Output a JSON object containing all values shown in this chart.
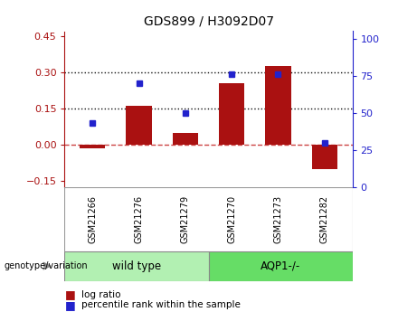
{
  "title": "GDS899 / H3092D07",
  "samples": [
    "GSM21266",
    "GSM21276",
    "GSM21279",
    "GSM21270",
    "GSM21273",
    "GSM21282"
  ],
  "log_ratio": [
    -0.015,
    0.16,
    0.05,
    0.255,
    0.325,
    -0.1
  ],
  "percentile_rank": [
    43,
    70,
    50,
    76,
    76,
    30
  ],
  "groups": [
    {
      "label": "wild type",
      "color": "#90EE90"
    },
    {
      "label": "AQP1-/-",
      "color": "#5CD65C"
    }
  ],
  "group_label_prefix": "genotype/variation",
  "bar_color": "#AA1111",
  "dot_color": "#2222CC",
  "zero_line_color": "#CC4444",
  "hline_color": "#111111",
  "hlines": [
    0.15,
    0.3
  ],
  "ylim_left": [
    -0.175,
    0.47
  ],
  "ylim_right": [
    0,
    105
  ],
  "yticks_left": [
    -0.15,
    0.0,
    0.15,
    0.3,
    0.45
  ],
  "yticks_right": [
    0,
    25,
    50,
    75,
    100
  ],
  "legend_labels": [
    "log ratio",
    "percentile rank within the sample"
  ],
  "bar_width": 0.55,
  "background_color": "#ffffff",
  "plot_bg_color": "#ffffff",
  "tick_label_area_color": "#cccccc",
  "group_box_color_wt": "#b2f0b2",
  "group_box_color_aqp": "#66dd66"
}
